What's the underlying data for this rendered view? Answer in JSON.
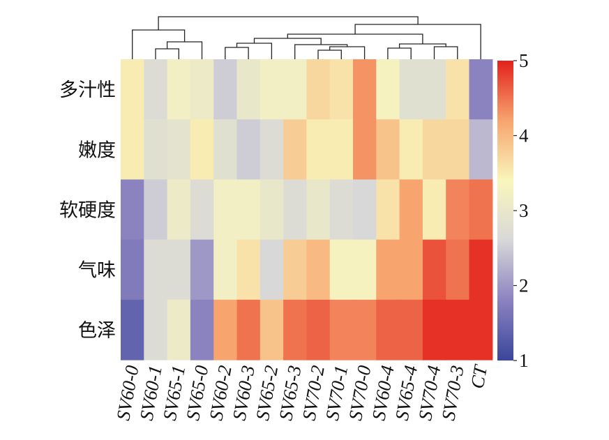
{
  "chart_data": {
    "type": "heatmap",
    "rows": [
      "多汁性",
      "嫩度",
      "软硬度",
      "气味",
      "色泽"
    ],
    "columns": [
      "SV60-0",
      "SV60-1",
      "SV65-1",
      "SV65-0",
      "SV60-2",
      "SV60-3",
      "SV65-2",
      "SV65-3",
      "SV70-2",
      "SV70-1",
      "SV70-0",
      "SV60-4",
      "SV65-4",
      "SV70-4",
      "SV70-3",
      "CT"
    ],
    "values": [
      [
        3.5,
        2.7,
        3.2,
        3.1,
        2.5,
        3.0,
        3.2,
        3.2,
        3.7,
        3.6,
        4.3,
        3.3,
        2.8,
        2.8,
        3.6,
        1.8
      ],
      [
        3.5,
        2.8,
        2.9,
        3.5,
        2.8,
        2.5,
        2.7,
        3.8,
        3.5,
        3.5,
        4.3,
        3.9,
        3.5,
        3.7,
        3.7,
        2.3
      ],
      [
        1.8,
        2.5,
        3.1,
        2.7,
        3.2,
        3.2,
        3.0,
        2.7,
        3.0,
        2.7,
        2.6,
        3.6,
        4.2,
        3.5,
        4.4,
        4.5
      ],
      [
        1.7,
        2.7,
        2.7,
        2.0,
        3.2,
        3.6,
        2.6,
        3.8,
        4.0,
        3.3,
        3.3,
        4.2,
        4.2,
        4.7,
        4.5,
        4.9
      ],
      [
        1.4,
        2.7,
        3.1,
        1.8,
        4.2,
        4.5,
        3.9,
        4.5,
        4.6,
        4.4,
        4.4,
        4.6,
        4.6,
        4.9,
        4.9,
        4.9
      ]
    ],
    "colorbar": {
      "ticks": [
        "1",
        "2",
        "3",
        "4",
        "5"
      ],
      "range": [
        1,
        5
      ],
      "colors": [
        "#3a469b",
        "#8b82c0",
        "#d8d8d8",
        "#f9f6bc",
        "#f7a46e",
        "#e2211c"
      ]
    },
    "column_dendrogram": true
  }
}
